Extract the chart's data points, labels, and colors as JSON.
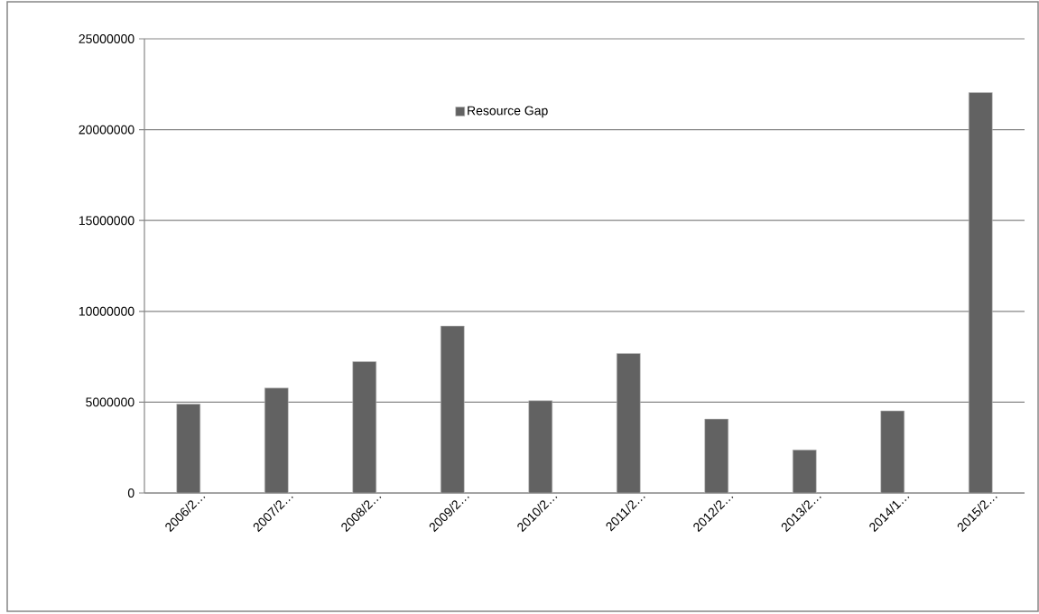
{
  "chart_data": {
    "type": "bar",
    "categories": [
      "2006/2…",
      "2007/2…",
      "2008/2…",
      "2009/2…",
      "2010/2…",
      "2011/2…",
      "2012/2…",
      "2013/2…",
      "2014/1…",
      "2015/2…"
    ],
    "series": [
      {
        "name": "Resource Gap",
        "color": "#626262",
        "values": [
          4900000,
          5780000,
          7230000,
          9190000,
          5080000,
          7680000,
          4070000,
          2370000,
          4520000,
          22040000
        ]
      }
    ],
    "ylim": [
      0,
      25000000
    ],
    "yticks": [
      0,
      5000000,
      10000000,
      15000000,
      20000000,
      25000000
    ],
    "grid": "y",
    "legend": "top"
  }
}
